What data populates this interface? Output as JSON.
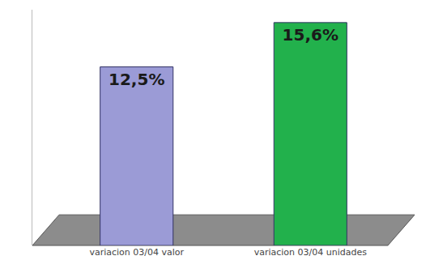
{
  "chart_data": {
    "type": "bar",
    "categories": [
      "variacion 03/04 valor",
      "variacion 03/04 unidades"
    ],
    "values": [
      12.5,
      15.6
    ],
    "value_labels": [
      "12,5%",
      "15,6%"
    ],
    "colors": [
      "#9b9bd6",
      "#22b14c"
    ],
    "ylim": [
      0,
      16.5
    ],
    "yticks": [],
    "grid": false,
    "data_labels": true,
    "tick_labels": "x"
  }
}
